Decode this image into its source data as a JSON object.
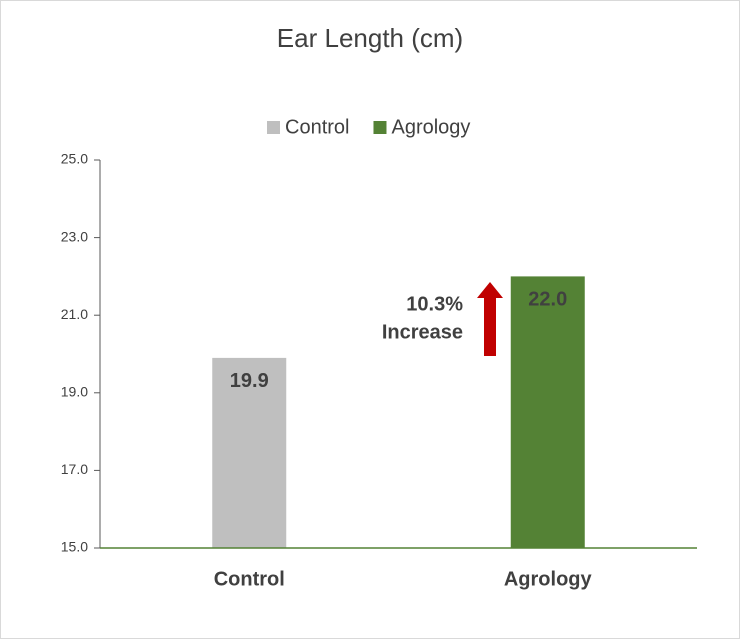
{
  "chart_data": {
    "type": "bar",
    "title": "Ear Length (cm)",
    "categories": [
      "Control",
      "Agrology"
    ],
    "series": [
      {
        "name": "Control",
        "color": "#bfbfbf",
        "values": [
          19.9,
          null
        ],
        "value_labels": [
          "19.9",
          null
        ]
      },
      {
        "name": "Agrology",
        "color": "#548235",
        "values": [
          null,
          22.0
        ],
        "value_labels": [
          null,
          "22.0"
        ]
      }
    ],
    "ylim": [
      15,
      25
    ],
    "yticks": [
      {
        "value": 15,
        "label": "15.0"
      },
      {
        "value": 17,
        "label": "17.0"
      },
      {
        "value": 19,
        "label": "19.0"
      },
      {
        "value": 21,
        "label": "21.0"
      },
      {
        "value": 23,
        "label": "23.0"
      },
      {
        "value": 25,
        "label": "25.0"
      }
    ],
    "legend": "top",
    "annotation": [
      "10.3%",
      "Increase"
    ],
    "annotation_color": "#548235"
  }
}
